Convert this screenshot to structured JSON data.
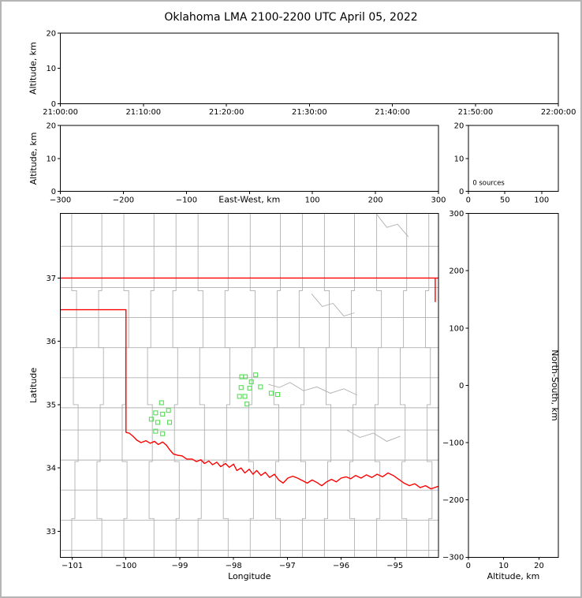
{
  "title": "Oklahoma LMA 2100-2200 UTC April 05, 2022",
  "colors": {
    "axis": "#000000",
    "county_line": "#b0b0b0",
    "state_border": "#ff0000",
    "station_marker": "#55dd55",
    "background": "#ffffff",
    "frame": "#b5b5b5"
  },
  "chart_data": [
    {
      "id": "time_height",
      "type": "scatter",
      "description": "VHF source altitude vs time panel (empty - no sources)",
      "xlabel": "",
      "ylabel": "Altitude, km",
      "xlim": [
        0,
        3600
      ],
      "ylim": [
        0,
        20
      ],
      "grid": false,
      "xticks": [
        {
          "v": 0,
          "label": "21:00:00"
        },
        {
          "v": 600,
          "label": "21:10:00"
        },
        {
          "v": 1200,
          "label": "21:20:00"
        },
        {
          "v": 1800,
          "label": "21:30:00"
        },
        {
          "v": 2400,
          "label": "21:40:00"
        },
        {
          "v": 3000,
          "label": "21:50:00"
        },
        {
          "v": 3600,
          "label": "22:00:00"
        }
      ],
      "yticks": [
        {
          "v": 0,
          "label": "0"
        },
        {
          "v": 10,
          "label": "10"
        },
        {
          "v": 20,
          "label": "20"
        }
      ],
      "points": []
    },
    {
      "id": "ew_height",
      "type": "scatter",
      "description": "Altitude vs east-west distance panel (empty - no sources)",
      "xlabel": "East-West, km",
      "xlabel_inline": true,
      "ylabel": "Altitude, km",
      "xlim": [
        -300,
        300
      ],
      "ylim": [
        0,
        20
      ],
      "grid": false,
      "xticks": [
        {
          "v": -300,
          "label": "−300"
        },
        {
          "v": -200,
          "label": "−200"
        },
        {
          "v": -100,
          "label": "−100"
        },
        {
          "v": 0,
          "label": ""
        },
        {
          "v": 100,
          "label": "100"
        },
        {
          "v": 200,
          "label": "200"
        },
        {
          "v": 300,
          "label": "300"
        }
      ],
      "yticks": [
        {
          "v": 0,
          "label": "0"
        },
        {
          "v": 10,
          "label": "10"
        },
        {
          "v": 20,
          "label": "20"
        }
      ],
      "points": []
    },
    {
      "id": "alt_hist",
      "type": "scatter",
      "description": "Altitude histogram panel with source count",
      "xlabel": "",
      "ylabel": "",
      "xlim": [
        0,
        123
      ],
      "ylim": [
        0,
        20
      ],
      "grid": false,
      "xticks": [
        {
          "v": 0,
          "label": "0"
        },
        {
          "v": 50,
          "label": "50"
        },
        {
          "v": 100,
          "label": "100"
        }
      ],
      "yticks": [
        {
          "v": 0,
          "label": "0"
        },
        {
          "v": 10,
          "label": "10"
        },
        {
          "v": 20,
          "label": "20"
        }
      ],
      "annotation": {
        "text": "0 sources",
        "x": 6,
        "y": 2.0
      },
      "points": []
    },
    {
      "id": "plan",
      "type": "scatter",
      "description": "Plan-view map with Oklahoma state border (red), county lines (gray) and LMA station markers (green squares)",
      "xlabel": "Longitude",
      "ylabel": "Latitude",
      "xlim": [
        -101.22,
        -94.19
      ],
      "ylim": [
        32.59,
        38.02
      ],
      "grid": false,
      "xticks": [
        {
          "v": -101,
          "label": "−101"
        },
        {
          "v": -100,
          "label": "−100"
        },
        {
          "v": -99,
          "label": "−99"
        },
        {
          "v": -98,
          "label": "−98"
        },
        {
          "v": -97,
          "label": "−97"
        },
        {
          "v": -96,
          "label": "−96"
        },
        {
          "v": -95,
          "label": "−95"
        }
      ],
      "yticks": [
        {
          "v": 33,
          "label": "33"
        },
        {
          "v": 34,
          "label": "34"
        },
        {
          "v": 35,
          "label": "35"
        },
        {
          "v": 36,
          "label": "36"
        },
        {
          "v": 37,
          "label": "37"
        }
      ],
      "stations": [
        [
          -97.85,
          35.44
        ],
        [
          -97.78,
          35.44
        ],
        [
          -97.59,
          35.47
        ],
        [
          -97.86,
          35.27
        ],
        [
          -97.7,
          35.26
        ],
        [
          -97.89,
          35.13
        ],
        [
          -97.79,
          35.13
        ],
        [
          -97.5,
          35.28
        ],
        [
          -97.75,
          35.01
        ],
        [
          -97.3,
          35.18
        ],
        [
          -97.18,
          35.16
        ],
        [
          -97.67,
          35.36
        ],
        [
          -99.34,
          35.03
        ],
        [
          -99.45,
          34.87
        ],
        [
          -99.32,
          34.85
        ],
        [
          -99.53,
          34.77
        ],
        [
          -99.41,
          34.72
        ],
        [
          -99.19,
          34.72
        ],
        [
          -99.45,
          34.58
        ],
        [
          -99.32,
          34.54
        ],
        [
          -99.21,
          34.91
        ]
      ],
      "state_border": [
        [
          [
            -101.22,
            37.0
          ],
          [
            -94.19,
            37.0
          ]
        ],
        [
          [
            -94.25,
            37.0
          ],
          [
            -94.25,
            36.62
          ]
        ],
        [
          [
            -101.22,
            36.5
          ],
          [
            -100.0,
            36.5
          ],
          [
            -100.0,
            34.56
          ]
        ],
        [
          [
            -100.0,
            34.56
          ],
          [
            -99.94,
            34.55
          ],
          [
            -99.87,
            34.5
          ],
          [
            -99.8,
            34.44
          ],
          [
            -99.72,
            34.4
          ],
          [
            -99.63,
            34.43
          ],
          [
            -99.55,
            34.39
          ],
          [
            -99.47,
            34.42
          ],
          [
            -99.4,
            34.37
          ],
          [
            -99.32,
            34.41
          ],
          [
            -99.25,
            34.36
          ],
          [
            -99.19,
            34.29
          ],
          [
            -99.12,
            34.22
          ],
          [
            -99.04,
            34.2
          ],
          [
            -98.96,
            34.19
          ],
          [
            -98.87,
            34.14
          ],
          [
            -98.77,
            34.14
          ],
          [
            -98.69,
            34.1
          ],
          [
            -98.61,
            34.13
          ],
          [
            -98.54,
            34.07
          ],
          [
            -98.46,
            34.11
          ],
          [
            -98.39,
            34.05
          ],
          [
            -98.31,
            34.09
          ],
          [
            -98.24,
            34.02
          ],
          [
            -98.15,
            34.07
          ],
          [
            -98.08,
            34.01
          ],
          [
            -98.0,
            34.06
          ],
          [
            -97.94,
            33.96
          ],
          [
            -97.86,
            34.0
          ],
          [
            -97.79,
            33.92
          ],
          [
            -97.71,
            33.98
          ],
          [
            -97.64,
            33.9
          ],
          [
            -97.57,
            33.96
          ],
          [
            -97.49,
            33.88
          ],
          [
            -97.41,
            33.93
          ],
          [
            -97.33,
            33.85
          ],
          [
            -97.24,
            33.9
          ],
          [
            -97.16,
            33.81
          ],
          [
            -97.08,
            33.76
          ],
          [
            -96.99,
            33.84
          ],
          [
            -96.9,
            33.87
          ],
          [
            -96.81,
            33.84
          ],
          [
            -96.72,
            33.8
          ],
          [
            -96.63,
            33.76
          ],
          [
            -96.54,
            33.81
          ],
          [
            -96.45,
            33.77
          ],
          [
            -96.36,
            33.72
          ],
          [
            -96.27,
            33.78
          ],
          [
            -96.18,
            33.82
          ],
          [
            -96.09,
            33.78
          ],
          [
            -96.0,
            33.84
          ],
          [
            -95.91,
            33.86
          ],
          [
            -95.82,
            33.83
          ],
          [
            -95.73,
            33.88
          ],
          [
            -95.63,
            33.84
          ],
          [
            -95.53,
            33.89
          ],
          [
            -95.43,
            33.85
          ],
          [
            -95.33,
            33.9
          ],
          [
            -95.23,
            33.86
          ],
          [
            -95.13,
            33.92
          ],
          [
            -95.03,
            33.88
          ],
          [
            -94.93,
            33.82
          ],
          [
            -94.83,
            33.76
          ],
          [
            -94.73,
            33.72
          ],
          [
            -94.63,
            33.75
          ],
          [
            -94.53,
            33.69
          ],
          [
            -94.43,
            33.72
          ],
          [
            -94.33,
            33.67
          ],
          [
            -94.19,
            33.71
          ]
        ]
      ],
      "county_lon_lines": [
        -100.95,
        -100.48,
        -100.01,
        -99.54,
        -99.07,
        -98.6,
        -98.13,
        -97.66,
        -97.19,
        -96.72,
        -96.25,
        -95.78,
        -95.31,
        -94.84,
        -94.37
      ],
      "county_lat_lines": [
        32.75,
        33.2,
        33.65,
        34.1,
        34.55,
        35.0,
        35.45,
        35.9,
        36.35,
        36.8,
        37.55
      ],
      "county_rivers": [
        [
          [
            -97.35,
            35.32
          ],
          [
            -97.15,
            35.27
          ],
          [
            -96.95,
            35.35
          ],
          [
            -96.7,
            35.22
          ],
          [
            -96.45,
            35.28
          ],
          [
            -96.2,
            35.18
          ],
          [
            -95.95,
            35.25
          ],
          [
            -95.7,
            35.15
          ]
        ],
        [
          [
            -96.55,
            36.75
          ],
          [
            -96.35,
            36.55
          ],
          [
            -96.15,
            36.6
          ],
          [
            -95.95,
            36.4
          ],
          [
            -95.75,
            36.45
          ]
        ],
        [
          [
            -95.9,
            34.6
          ],
          [
            -95.65,
            34.48
          ],
          [
            -95.4,
            34.55
          ],
          [
            -95.15,
            34.42
          ],
          [
            -94.9,
            34.5
          ]
        ],
        [
          [
            -95.35,
            38.02
          ],
          [
            -95.15,
            37.8
          ],
          [
            -94.95,
            37.85
          ],
          [
            -94.75,
            37.65
          ]
        ]
      ],
      "points": []
    },
    {
      "id": "ns_height",
      "type": "scatter",
      "description": "North-south distance vs altitude panel (empty - no sources)",
      "xlabel": "Altitude, km",
      "ylabel_right": "North-South, km",
      "xlim": [
        0,
        25.5
      ],
      "ylim": [
        -300,
        300
      ],
      "grid": false,
      "xticks": [
        {
          "v": 0,
          "label": "0"
        },
        {
          "v": 10,
          "label": "10"
        },
        {
          "v": 20,
          "label": "20"
        }
      ],
      "yticks": [
        {
          "v": 300,
          "label": "300"
        },
        {
          "v": 200,
          "label": "200"
        },
        {
          "v": 100,
          "label": "100"
        },
        {
          "v": 0,
          "label": "0"
        },
        {
          "v": -100,
          "label": "−100"
        },
        {
          "v": -200,
          "label": "−200"
        },
        {
          "v": -300,
          "label": "−300"
        }
      ],
      "points": []
    }
  ]
}
